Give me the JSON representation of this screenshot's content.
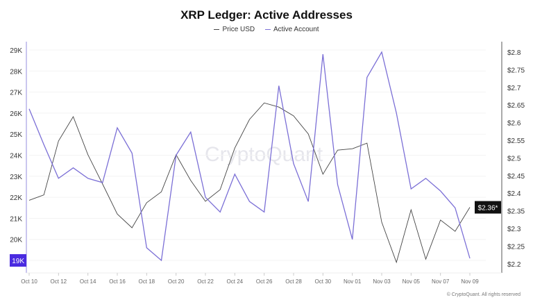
{
  "chart_data": {
    "type": "line",
    "title": "XRP Ledger: Active Addresses",
    "x": [
      "Oct 10",
      "Oct 11",
      "Oct 12",
      "Oct 13",
      "Oct 14",
      "Oct 15",
      "Oct 16",
      "Oct 17",
      "Oct 18",
      "Oct 19",
      "Oct 20",
      "Oct 21",
      "Oct 22",
      "Oct 23",
      "Oct 24",
      "Oct 25",
      "Oct 26",
      "Oct 27",
      "Oct 28",
      "Oct 29",
      "Oct 30",
      "Oct 31",
      "Nov 01",
      "Nov 02",
      "Nov 03",
      "Nov 04",
      "Nov 05",
      "Nov 06",
      "Nov 07",
      "Nov 08",
      "Nov 09"
    ],
    "x_tick_labels": [
      "Oct 10",
      "Oct 12",
      "Oct 14",
      "Oct 16",
      "Oct 18",
      "Oct 20",
      "Oct 22",
      "Oct 24",
      "Oct 26",
      "Oct 28",
      "Oct 30",
      "Nov 01",
      "Nov 03",
      "Nov 05",
      "Nov 07",
      "Nov 09"
    ],
    "series": [
      {
        "name": "Price USD",
        "axis": "right",
        "color": "#444444",
        "values": [
          2.38,
          2.395,
          2.548,
          2.617,
          2.509,
          2.426,
          2.341,
          2.302,
          2.373,
          2.404,
          2.509,
          2.436,
          2.377,
          2.41,
          2.528,
          2.609,
          2.656,
          2.644,
          2.619,
          2.568,
          2.454,
          2.522,
          2.526,
          2.542,
          2.318,
          2.204,
          2.353,
          2.213,
          2.324,
          2.292,
          2.36
        ]
      },
      {
        "name": "Active Account",
        "axis": "left",
        "color": "#7b6fd6",
        "values": [
          26.2,
          24.5,
          22.9,
          23.4,
          22.9,
          22.7,
          25.3,
          24.1,
          19.6,
          19.0,
          24.0,
          25.1,
          22.0,
          21.3,
          23.1,
          21.8,
          21.3,
          27.3,
          23.6,
          21.8,
          28.8,
          22.6,
          20.0,
          27.7,
          28.9,
          26.0,
          22.4,
          22.9,
          22.3,
          21.5,
          19.1
        ]
      }
    ],
    "left_axis": {
      "ticks": [
        "29K",
        "28K",
        "27K",
        "26K",
        "25K",
        "24K",
        "23K",
        "22K",
        "21K",
        "20K",
        "19K"
      ],
      "range": [
        18.6,
        29.3
      ],
      "highlight": "19K",
      "highlight_color": "#4a2be0"
    },
    "right_axis": {
      "ticks": [
        "$2.8",
        "$2.75",
        "$2.7",
        "$2.65",
        "$2.6",
        "$2.55",
        "$2.5",
        "$2.45",
        "$2.4",
        "$2.35",
        "$2.3",
        "$2.25",
        "$2.2"
      ],
      "range": [
        2.17,
        2.84
      ],
      "current_label": "$2.36*"
    },
    "grid": true,
    "legend_placement": "top-center",
    "watermark": "CryptoQuant"
  },
  "copyright": "© CryptoQuant. All rights reserved"
}
